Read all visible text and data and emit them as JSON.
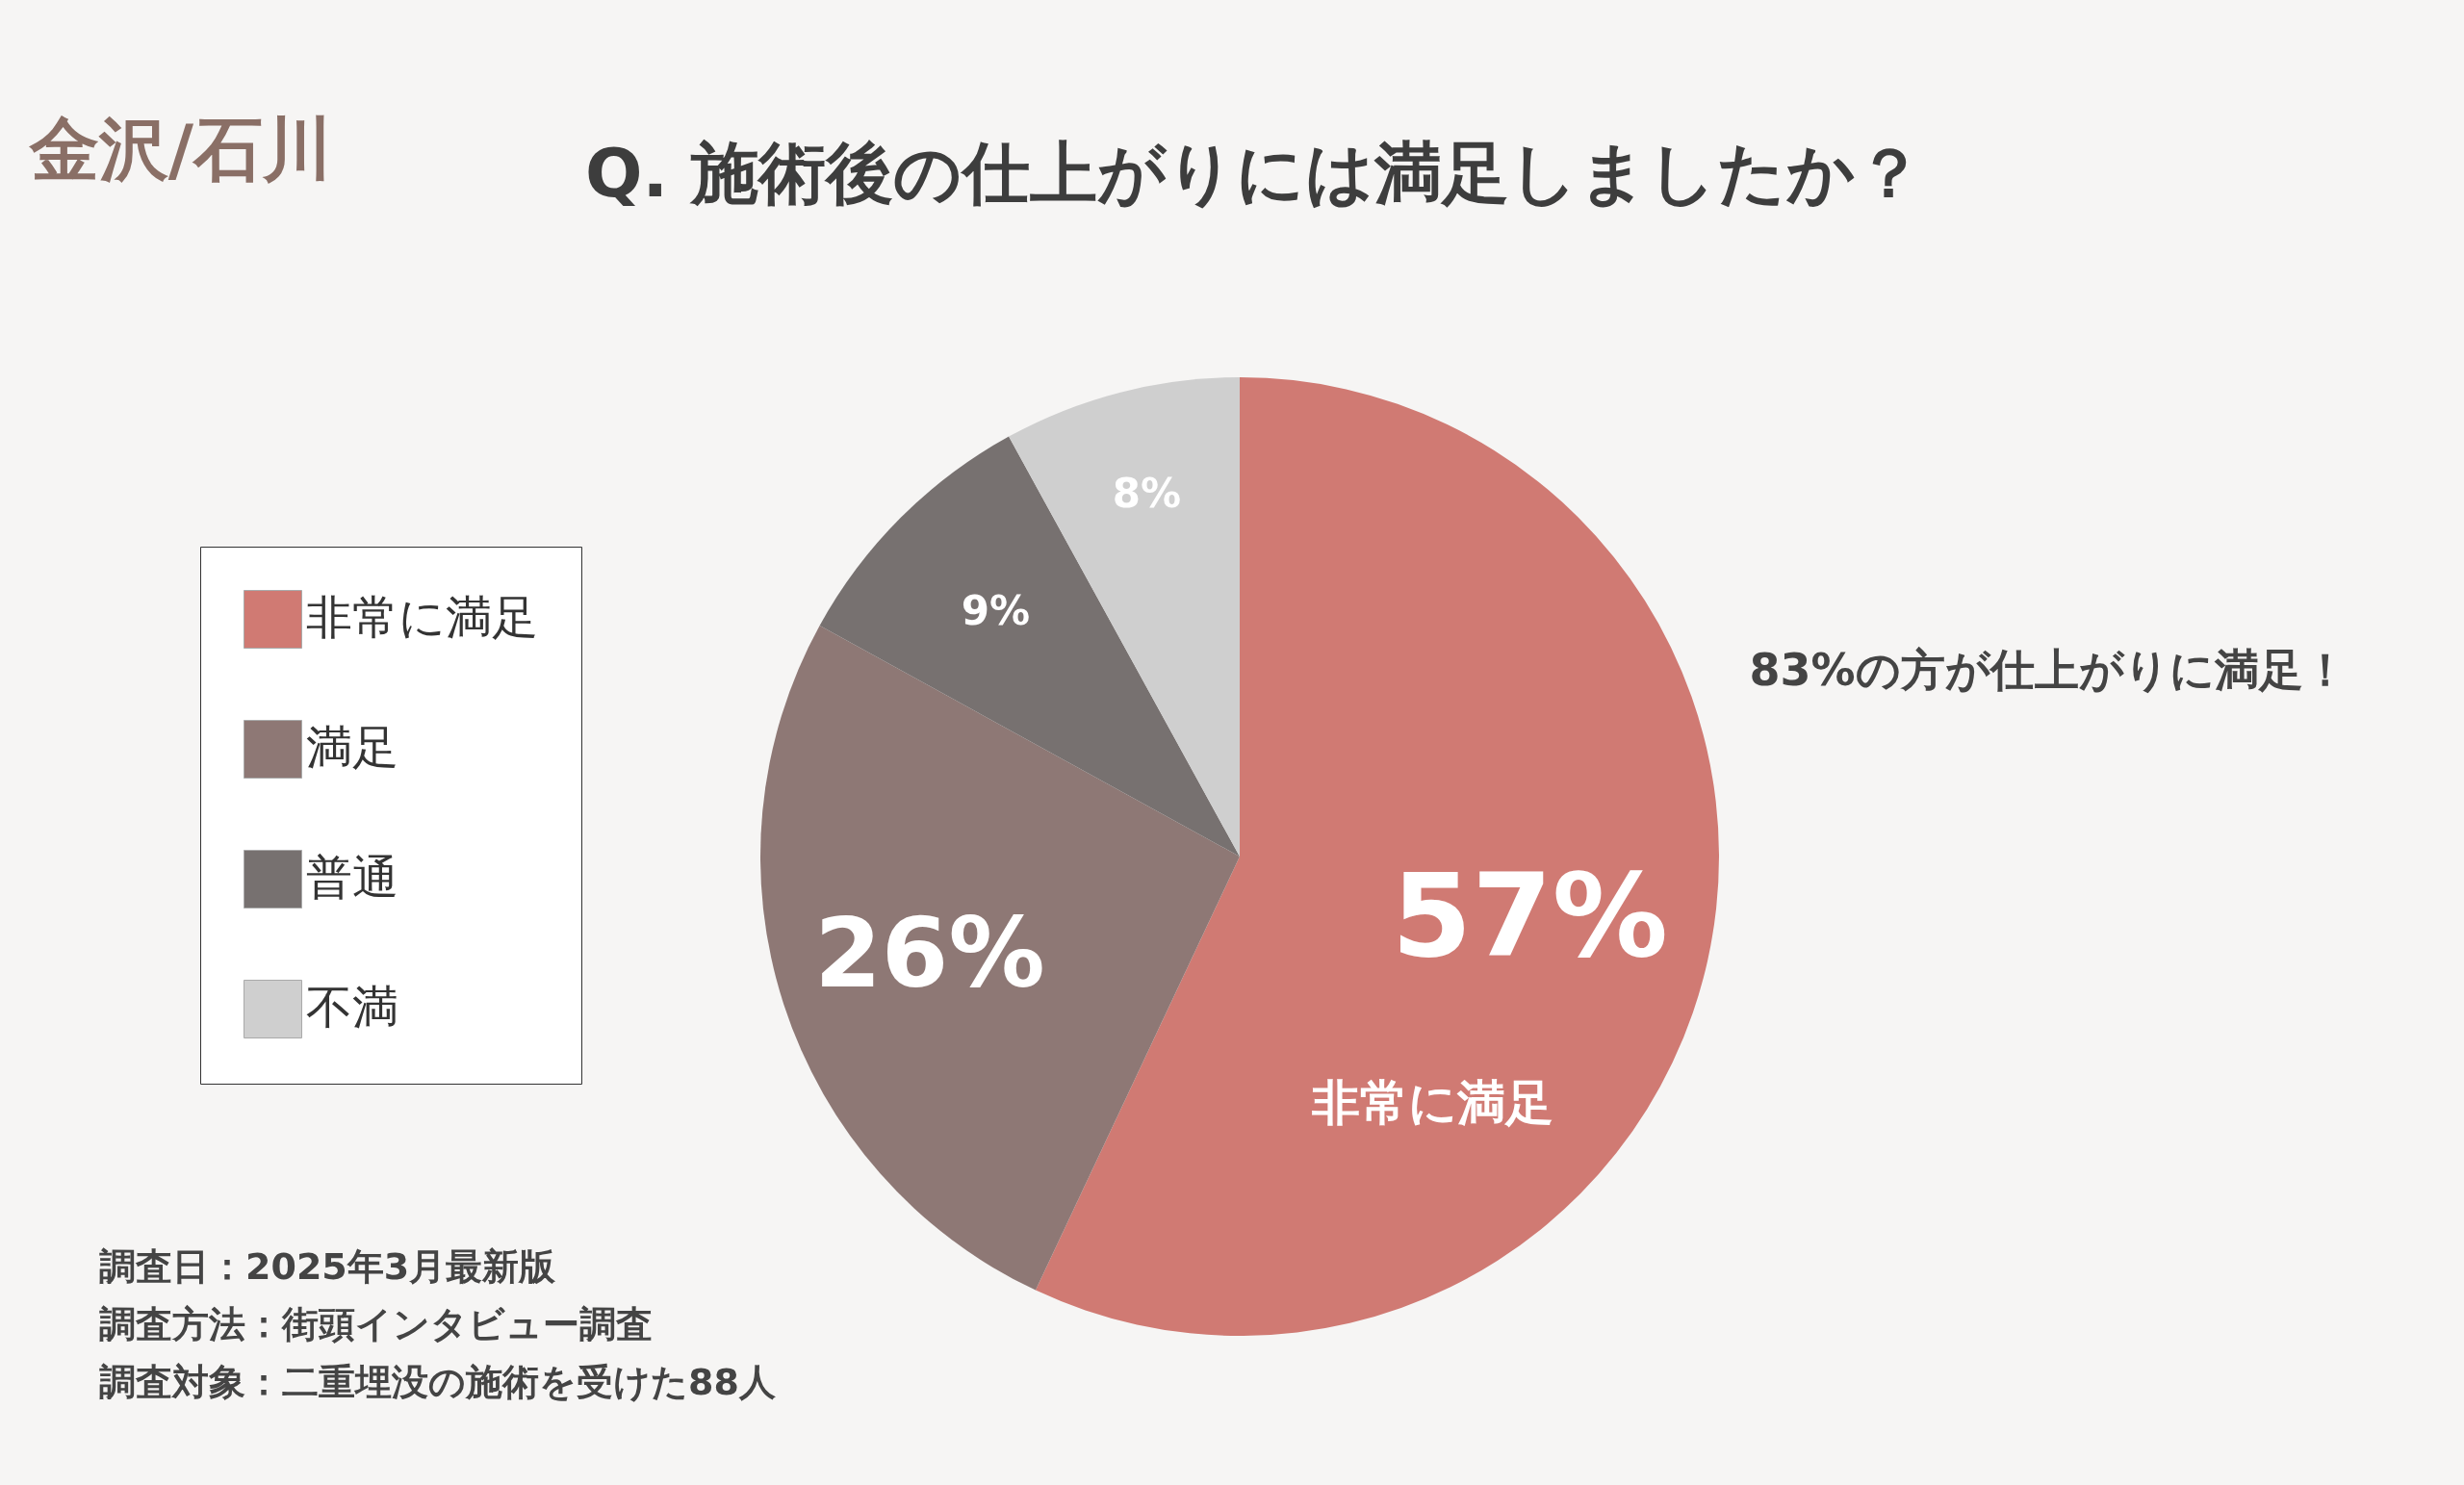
{
  "chart_data": {
    "type": "pie",
    "title": "Q. 施術後の仕上がりには満足しましたか？",
    "categories": [
      "非常に満足",
      "満足",
      "普通",
      "不満"
    ],
    "values": [
      57,
      26,
      9,
      8
    ],
    "colors": [
      "#d07a73",
      "#8e7875",
      "#777170",
      "#cfcfcf"
    ],
    "value_labels": [
      "57%",
      "26%",
      "9%",
      "8%"
    ],
    "legend": "left",
    "annotations": [
      "金沢/石川",
      "83%の方が仕上がりに満足！",
      "非常に満足",
      "調査日：2025年3月最新版",
      "調査方法：街頭インタビュー調査",
      "調査対象：二重埋没の施術を受けた88人"
    ]
  }
}
